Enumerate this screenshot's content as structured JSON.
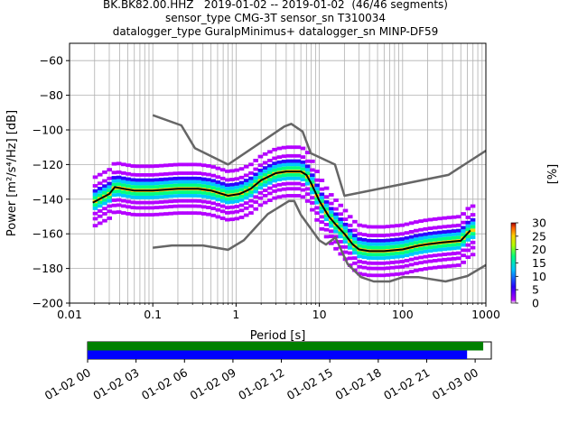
{
  "header": {
    "line1": "BK.BK82.00.HHZ   2019-01-02 -- 2019-01-02  (46/46 segments)",
    "line2": "sensor_type CMG-3T sensor_sn T310034",
    "line3": "datalogger_type GuralpMinimus+ datalogger_sn MINP-DF59"
  },
  "chart_data": [
    {
      "type": "heatmap",
      "xlabel": "Period [s]",
      "ylabel": "Power [m²/s⁴/Hz] [dB]",
      "x_scale": "log",
      "xlim": [
        0.01,
        1000
      ],
      "ylim": [
        -200,
        -50
      ],
      "xticks": [
        0.01,
        0.1,
        1,
        10,
        100,
        1000
      ],
      "xtick_labels": [
        "0.01",
        "0.1",
        "1",
        "10",
        "100",
        "1000"
      ],
      "yticks": [
        -200,
        -180,
        -160,
        -140,
        -120,
        -100,
        -80,
        -60
      ],
      "grid": true,
      "colorbar": {
        "label": "[%]",
        "ticks": [
          0,
          5,
          10,
          15,
          20,
          25,
          30
        ],
        "range": [
          0,
          30
        ],
        "colormap": [
          "#ffffff",
          "#b400ff",
          "#2a00ff",
          "#00c8ff",
          "#00ff80",
          "#b4ff00",
          "#ffd000",
          "#ff5a00",
          "#a00000"
        ]
      },
      "noise_model_high": {
        "x": [
          0.1,
          0.22,
          0.32,
          0.8,
          3.8,
          4.6,
          6.3,
          7.9,
          15.4,
          20,
          354.8,
          1000
        ],
        "y": [
          -91.5,
          -97.4,
          -110.5,
          -120.0,
          -98.0,
          -96.5,
          -101.0,
          -113.5,
          -120.0,
          -138.0,
          -126.0,
          -112.0
        ]
      },
      "noise_model_low": {
        "x": [
          0.1,
          0.17,
          0.4,
          0.8,
          1.24,
          2.4,
          4.3,
          5.0,
          6.0,
          10.0,
          12.0,
          15.6,
          21.9,
          31.6,
          45.0,
          70.0,
          101.0,
          154.0,
          328.0,
          600.0,
          1000.0
        ],
        "y": [
          -168.0,
          -166.7,
          -166.7,
          -169.2,
          -163.7,
          -148.6,
          -141.1,
          -141.1,
          -149.0,
          -163.8,
          -166.2,
          -162.1,
          -177.5,
          -185.0,
          -187.5,
          -187.5,
          -185.0,
          -185.0,
          -187.5,
          -184.4,
          -178.0
        ]
      },
      "mode_curve": {
        "x": [
          0.019,
          0.025,
          0.03,
          0.035,
          0.045,
          0.06,
          0.1,
          0.2,
          0.35,
          0.5,
          0.8,
          1.1,
          1.5,
          2,
          3,
          4,
          5,
          6,
          7,
          8,
          10,
          13,
          16,
          20,
          25,
          30,
          40,
          60,
          100,
          150,
          200,
          300,
          500,
          650
        ],
        "y": [
          -142,
          -139,
          -137,
          -133,
          -134,
          -135,
          -135,
          -134,
          -134,
          -135,
          -138,
          -137,
          -134,
          -129,
          -125,
          -124,
          -124,
          -124,
          -126,
          -131,
          -141,
          -150,
          -155,
          -160,
          -166,
          -169,
          -170,
          -170,
          -169,
          -167,
          -166,
          -165,
          -164,
          -158
        ]
      },
      "percentile_rows": [
        {
          "offset_db": 14,
          "level": 1
        },
        {
          "offset_db": 9,
          "level": 3
        },
        {
          "offset_db": 6,
          "level": 6
        },
        {
          "offset_db": 4,
          "level": 10
        },
        {
          "offset_db": 2,
          "level": 16
        },
        {
          "offset_db": 0,
          "level": 24
        },
        {
          "offset_db": -2,
          "level": 16
        },
        {
          "offset_db": -4,
          "level": 10
        },
        {
          "offset_db": -7,
          "level": 5
        },
        {
          "offset_db": -10,
          "level": 2
        },
        {
          "offset_db": -14,
          "level": 1
        }
      ]
    },
    {
      "type": "bar",
      "description_axis": "time",
      "xlim": [
        "2019-01-02 00:00",
        "2019-01-03 01:00"
      ],
      "xtick_labels": [
        "01-02 00",
        "01-02 03",
        "01-02 06",
        "01-02 09",
        "01-02 12",
        "01-02 15",
        "01-02 18",
        "01-02 21",
        "01-03 00"
      ],
      "series": [
        {
          "color": "#008000",
          "start": "2019-01-02 00:00",
          "end": "2019-01-03 00:30"
        },
        {
          "color": "#0000ff",
          "start": "2019-01-02 00:00",
          "end": "2019-01-02 23:30"
        }
      ]
    }
  ]
}
